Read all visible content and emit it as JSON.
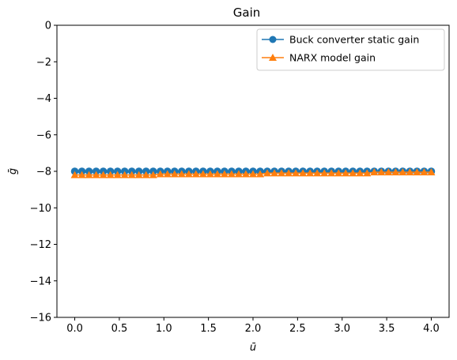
{
  "chart_data": {
    "type": "line",
    "title": "Gain",
    "xlabel": "ū",
    "ylabel": "ḡ",
    "xlim": [
      -0.2,
      4.2
    ],
    "ylim": [
      -16,
      0
    ],
    "xticks": [
      0.0,
      0.5,
      1.0,
      1.5,
      2.0,
      2.5,
      3.0,
      3.5,
      4.0
    ],
    "xtick_labels": [
      "0.0",
      "0.5",
      "1.0",
      "1.5",
      "2.0",
      "2.5",
      "3.0",
      "3.5",
      "4.0"
    ],
    "yticks": [
      0,
      -2,
      -4,
      -6,
      -8,
      -10,
      -12,
      -14,
      -16
    ],
    "ytick_labels": [
      "0",
      "−2",
      "−4",
      "−6",
      "−8",
      "−10",
      "−12",
      "−14",
      "−16"
    ],
    "grid": false,
    "legend_position": "top-right",
    "x": [
      0.0,
      0.08,
      0.16,
      0.24,
      0.32,
      0.4,
      0.48,
      0.56,
      0.64,
      0.72,
      0.8,
      0.88,
      0.96,
      1.04,
      1.12,
      1.2,
      1.28,
      1.36,
      1.44,
      1.52,
      1.6,
      1.68,
      1.76,
      1.84,
      1.92,
      2.0,
      2.08,
      2.16,
      2.24,
      2.32,
      2.4,
      2.48,
      2.56,
      2.64,
      2.72,
      2.8,
      2.88,
      2.96,
      3.04,
      3.12,
      3.2,
      3.28,
      3.36,
      3.44,
      3.52,
      3.6,
      3.68,
      3.76,
      3.84,
      3.92,
      4.0
    ],
    "series": [
      {
        "name": "Buck converter static gain",
        "color": "#1f77b4",
        "marker": "circle",
        "values": [
          -8.0,
          -8.0,
          -8.0,
          -8.0,
          -8.0,
          -8.0,
          -8.0,
          -8.0,
          -8.0,
          -8.0,
          -8.0,
          -8.0,
          -8.0,
          -8.0,
          -8.0,
          -8.0,
          -8.0,
          -8.0,
          -8.0,
          -8.0,
          -8.0,
          -8.0,
          -8.0,
          -8.0,
          -8.0,
          -8.0,
          -8.0,
          -8.0,
          -8.0,
          -8.0,
          -8.0,
          -8.0,
          -8.0,
          -8.0,
          -8.0,
          -8.0,
          -8.0,
          -8.0,
          -8.0,
          -8.0,
          -8.0,
          -8.0,
          -8.0,
          -8.0,
          -8.0,
          -8.0,
          -8.0,
          -8.0,
          -8.0,
          -8.0,
          -8.0
        ]
      },
      {
        "name": "NARX model gain",
        "color": "#ff7f0e",
        "marker": "triangle",
        "values": [
          -8.2,
          -8.2,
          -8.2,
          -8.2,
          -8.2,
          -8.2,
          -8.2,
          -8.2,
          -8.2,
          -8.2,
          -8.2,
          -8.2,
          -8.15,
          -8.15,
          -8.15,
          -8.15,
          -8.15,
          -8.15,
          -8.15,
          -8.15,
          -8.15,
          -8.15,
          -8.15,
          -8.15,
          -8.15,
          -8.15,
          -8.15,
          -8.1,
          -8.1,
          -8.1,
          -8.1,
          -8.1,
          -8.1,
          -8.1,
          -8.1,
          -8.1,
          -8.1,
          -8.1,
          -8.1,
          -8.1,
          -8.1,
          -8.1,
          -8.05,
          -8.05,
          -8.05,
          -8.05,
          -8.05,
          -8.05,
          -8.05,
          -8.05,
          -8.05
        ]
      }
    ]
  }
}
